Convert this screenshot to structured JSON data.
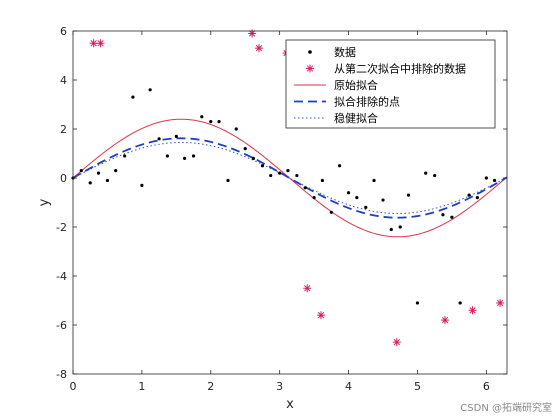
{
  "watermark": "CSDN @拓端研究室",
  "chart_data": {
    "type": "scatter",
    "xlabel": "x",
    "ylabel": "y",
    "xlim": [
      0,
      6.3
    ],
    "ylim": [
      -8,
      6
    ],
    "xticks": [
      0,
      1,
      2,
      3,
      4,
      5,
      6
    ],
    "yticks": [
      -8,
      -6,
      -4,
      -2,
      0,
      2,
      4,
      6
    ],
    "grid": false,
    "legend_location": "top-right",
    "legend": [
      {
        "key": "data",
        "label": "数据"
      },
      {
        "key": "excluded",
        "label": "从第二次拟合中排除的数据"
      },
      {
        "key": "original",
        "label": "原始拟合"
      },
      {
        "key": "exclude_fit",
        "label": "拟合排除的点"
      },
      {
        "key": "robust",
        "label": "稳健拟合"
      }
    ],
    "colors": {
      "data": "#000000",
      "excluded": "#d81b60",
      "original": "#e0334a",
      "exclude_fit": "#1f3fbf",
      "robust": "#3050d0",
      "axes": "#262626"
    },
    "fits": {
      "original_amplitude": 2.4,
      "exclude_amplitude": 1.62,
      "robust_amplitude": 1.45
    },
    "series": [
      {
        "key": "data",
        "marker": "dot",
        "x": [
          0.0,
          0.12,
          0.25,
          0.37,
          0.5,
          0.62,
          0.75,
          0.87,
          1.0,
          1.12,
          1.25,
          1.37,
          1.5,
          1.62,
          1.75,
          1.87,
          2.0,
          2.12,
          2.25,
          2.37,
          2.5,
          2.62,
          2.75,
          2.87,
          3.0,
          3.12,
          3.25,
          3.37,
          3.5,
          3.62,
          3.75,
          3.87,
          4.0,
          4.12,
          4.25,
          4.37,
          4.5,
          4.62,
          4.75,
          4.87,
          5.0,
          5.12,
          5.25,
          5.37,
          5.5,
          5.62,
          5.75,
          5.87,
          6.0,
          6.12
        ],
        "y": [
          0.0,
          0.3,
          -0.2,
          0.2,
          -0.1,
          0.3,
          0.9,
          3.3,
          -0.3,
          3.6,
          1.6,
          0.9,
          1.7,
          0.8,
          0.9,
          2.5,
          2.3,
          2.3,
          -0.1,
          2.0,
          1.2,
          0.8,
          0.5,
          0.1,
          0.2,
          0.3,
          0.1,
          -0.4,
          -0.8,
          -0.1,
          -1.4,
          0.5,
          -0.6,
          -0.8,
          -1.2,
          -0.1,
          -0.9,
          -2.1,
          -2.0,
          -0.7,
          -5.1,
          0.2,
          0.1,
          -1.5,
          -1.6,
          -5.1,
          -0.7,
          -0.8,
          0.0,
          -0.1
        ]
      },
      {
        "key": "excluded",
        "marker": "asterisk",
        "x": [
          0.3,
          0.4,
          2.6,
          2.7,
          3.1,
          3.4,
          3.6,
          4.7,
          5.4,
          5.8,
          6.2
        ],
        "y": [
          5.5,
          5.5,
          5.9,
          5.3,
          5.1,
          -4.5,
          -5.6,
          -6.7,
          -5.8,
          -5.4,
          -5.1
        ]
      }
    ]
  }
}
